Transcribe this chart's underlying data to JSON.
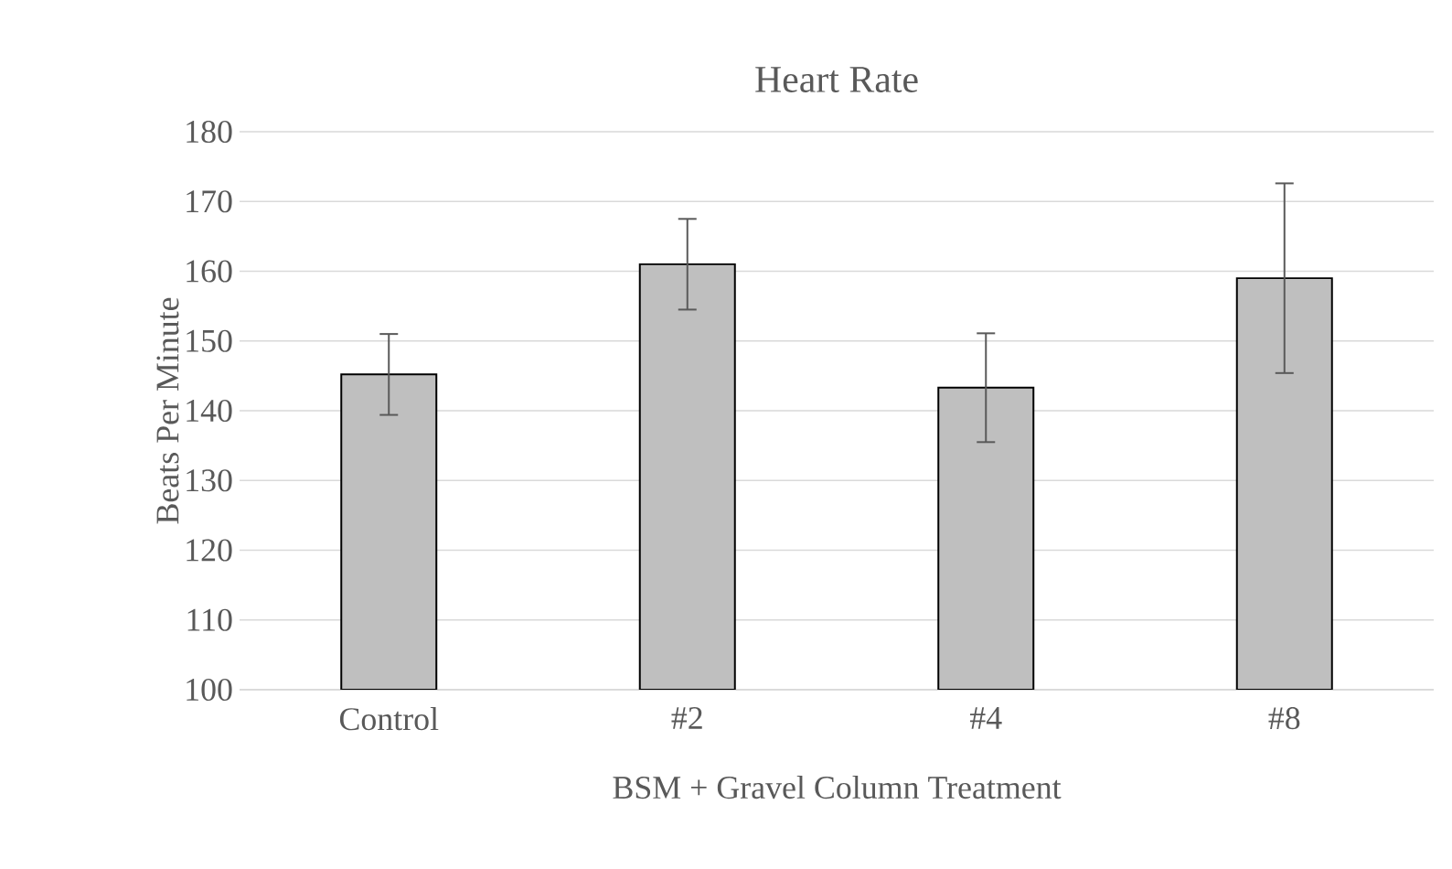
{
  "chart_data": {
    "type": "bar",
    "title": "Heart Rate",
    "xlabel": "BSM + Gravel Column Treatment",
    "ylabel": "Beats Per Minute",
    "categories": [
      "Control",
      "#2",
      "#4",
      "#8"
    ],
    "values": [
      145.2,
      161.0,
      143.3,
      159.0
    ],
    "errors": [
      5.8,
      6.5,
      7.8,
      13.6
    ],
    "color": "#bfbfbf",
    "ylim": [
      100,
      180
    ],
    "yticks": [
      100,
      110,
      120,
      130,
      140,
      150,
      160,
      170,
      180
    ],
    "grid": "y"
  }
}
